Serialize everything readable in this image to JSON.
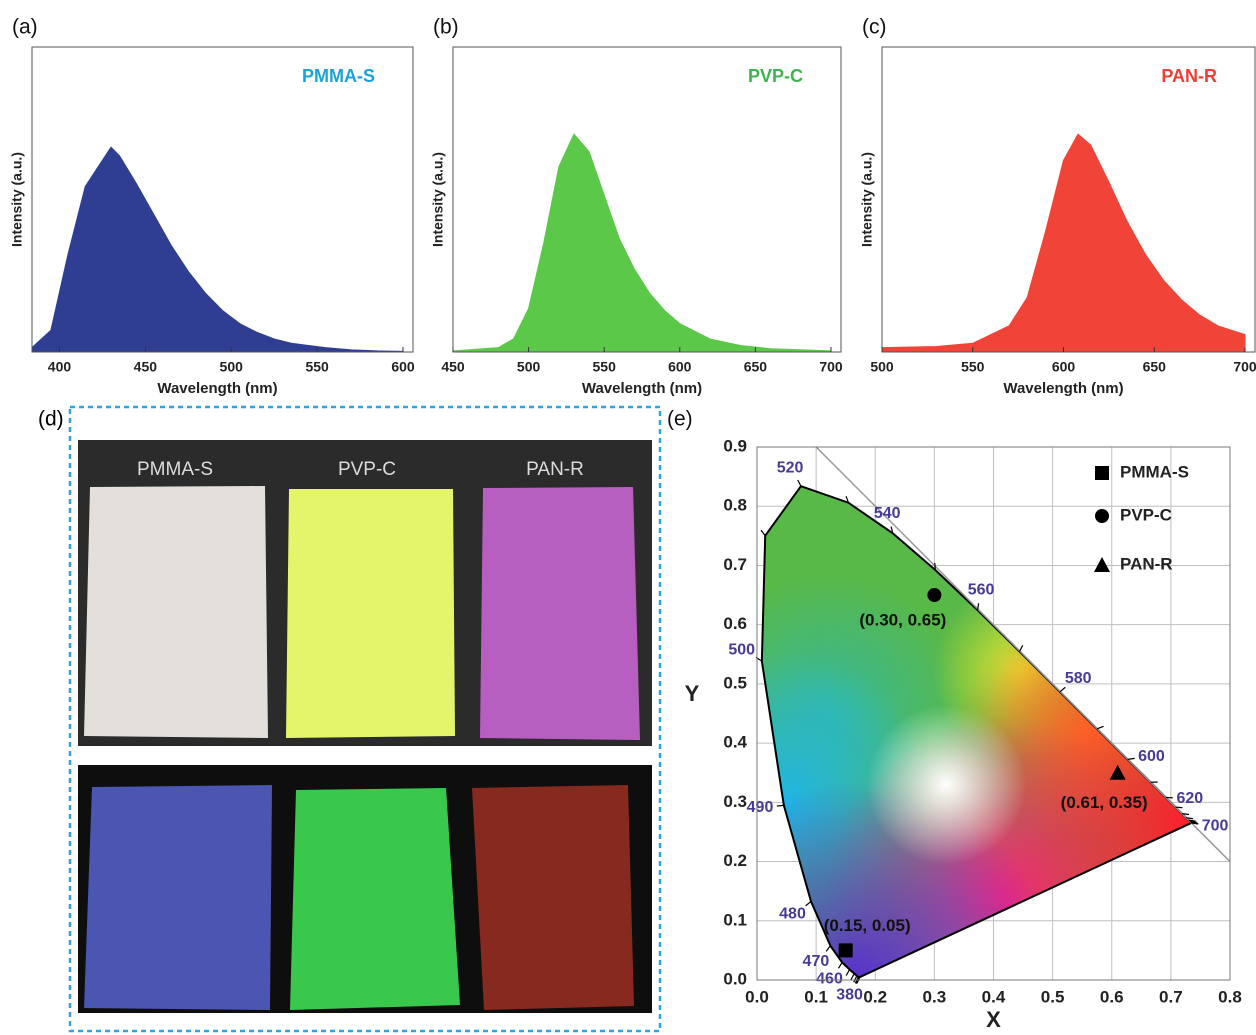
{
  "chart_data": [
    {
      "type": "area",
      "panel": "(a)",
      "title": "PMMA-S",
      "color": "#2f3e93",
      "title_color": "#1aa3d9",
      "x_label": "Wavelength (nm)",
      "y_label": "Intensity (a.u.)",
      "x": [
        384,
        395,
        405,
        415,
        425,
        430,
        435,
        445,
        455,
        465,
        475,
        485,
        495,
        505,
        515,
        525,
        535,
        545,
        555,
        570,
        585,
        600
      ],
      "values": [
        0.02,
        0.1,
        0.45,
        0.76,
        0.88,
        0.94,
        0.9,
        0.77,
        0.63,
        0.49,
        0.37,
        0.27,
        0.19,
        0.13,
        0.09,
        0.06,
        0.04,
        0.03,
        0.02,
        0.01,
        0.005,
        0.003
      ],
      "xlim": [
        384,
        600
      ],
      "ylim": [
        0,
        1.4
      ],
      "xticks": [
        400,
        450,
        500,
        550,
        600
      ]
    },
    {
      "type": "area",
      "panel": "(b)",
      "title": "PVP-C",
      "color": "#5cc84a",
      "title_color": "#3cb54a",
      "x_label": "Wavelength (nm)",
      "y_label": "Intensity (a.u.)",
      "x": [
        450,
        480,
        490,
        500,
        510,
        520,
        530,
        540,
        550,
        560,
        570,
        580,
        590,
        600,
        620,
        640,
        660,
        700
      ],
      "values": [
        0.005,
        0.02,
        0.06,
        0.2,
        0.5,
        0.85,
        1.0,
        0.92,
        0.72,
        0.52,
        0.38,
        0.27,
        0.19,
        0.13,
        0.06,
        0.03,
        0.015,
        0.005
      ],
      "xlim": [
        450,
        700
      ],
      "ylim": [
        0,
        1.4
      ],
      "xticks": [
        450,
        500,
        550,
        600,
        650,
        700
      ]
    },
    {
      "type": "area",
      "panel": "(c)",
      "title": "PAN-R",
      "color": "#f04438",
      "title_color": "#ee3e33",
      "x_label": "Wavelength (nm)",
      "y_label": "Intensity (a.u.)",
      "x": [
        500,
        530,
        550,
        570,
        580,
        590,
        600,
        608,
        615,
        625,
        635,
        645,
        655,
        665,
        675,
        685,
        700
      ],
      "values": [
        0.02,
        0.025,
        0.04,
        0.12,
        0.25,
        0.55,
        0.88,
        1.0,
        0.95,
        0.78,
        0.6,
        0.45,
        0.33,
        0.24,
        0.17,
        0.12,
        0.08
      ],
      "xlim": [
        500,
        700
      ],
      "ylim": [
        0,
        1.4
      ],
      "xticks": [
        500,
        550,
        600,
        650,
        700
      ]
    },
    {
      "type": "scatter",
      "panel": "(e)",
      "x_label": "X",
      "y_label": "Y",
      "grid": true,
      "xlim": [
        0,
        0.8
      ],
      "ylim": [
        0,
        0.9
      ],
      "xticks": [
        {
          "value": 0,
          "label": "0.0"
        },
        0.1,
        0.2,
        0.3,
        0.4,
        0.5,
        0.6,
        0.7,
        0.8
      ],
      "yticks": [
        {
          "value": 0,
          "label": "0.0"
        },
        0.1,
        0.2,
        0.3,
        0.4,
        0.5,
        0.6,
        0.7,
        0.8,
        0.9
      ],
      "wavelength_labels": [
        380,
        460,
        470,
        480,
        490,
        500,
        520,
        540,
        560,
        580,
        600,
        620,
        700
      ],
      "series": [
        {
          "name": "PMMA-S",
          "marker": "square",
          "color": "#000000",
          "x": [
            0.15
          ],
          "values": [
            0.05
          ],
          "value_labels": [
            "(0.15, 0.05)"
          ]
        },
        {
          "name": "PVP-C",
          "marker": "circle",
          "color": "#000000",
          "x": [
            0.3
          ],
          "values": [
            0.65
          ],
          "value_labels": [
            "(0.30, 0.65)"
          ]
        },
        {
          "name": "PAN-R",
          "marker": "triangle",
          "color": "#000000",
          "x": [
            0.61
          ],
          "values": [
            0.35
          ],
          "value_labels": [
            "(0.61, 0.35)"
          ]
        }
      ]
    }
  ],
  "photo": {
    "panel": "(d)",
    "labels": [
      "PMMA-S",
      "PVP-C",
      "PAN-R"
    ]
  }
}
